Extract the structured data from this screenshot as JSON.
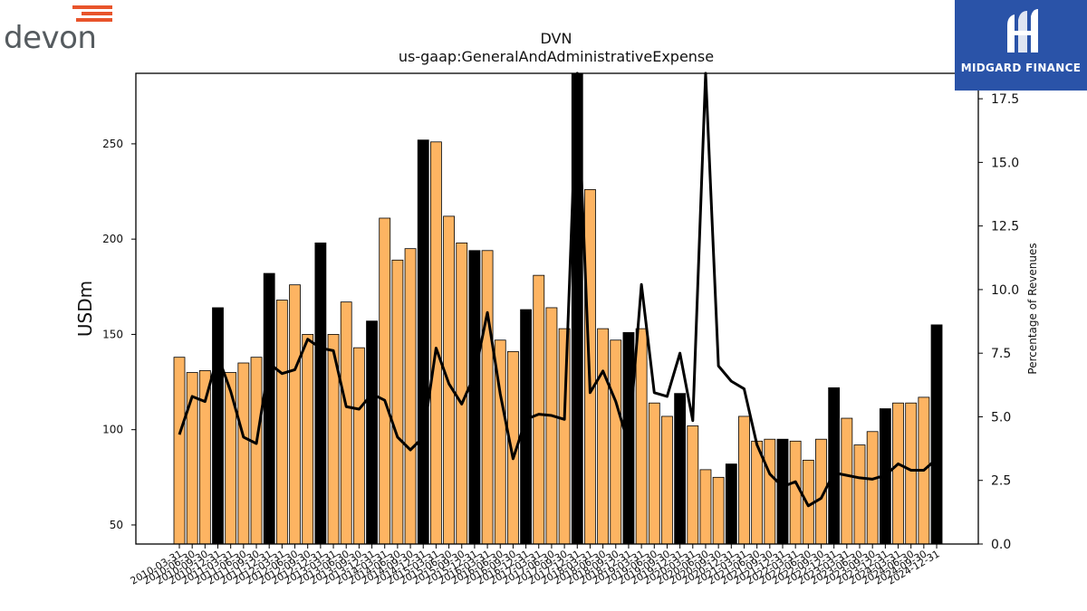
{
  "header": {
    "ticker": "DVN",
    "concept": "us-gaap:GeneralAndAdministrativeExpense"
  },
  "logos": {
    "company": "devon",
    "sponsor": "MIDGARD FINANCE"
  },
  "colors": {
    "bar_default": "#fdb462",
    "bar_highlight": "#000000",
    "line": "#000000",
    "brand_orange": "#e8542b",
    "brand_blue": "#2a53a8"
  },
  "chart_data": {
    "type": "bar",
    "ylabel": "USDm",
    "y2label": "Percentage of Revenues",
    "ylim": [
      40,
      287
    ],
    "y2lim": [
      0,
      18.5
    ],
    "yticks": [
      50,
      100,
      150,
      200,
      250
    ],
    "y2ticks": [
      "0.0",
      "2.5",
      "5.0",
      "7.5",
      "10.0",
      "12.5",
      "15.0",
      "17.5"
    ],
    "categories": [
      "2010-03-31",
      "2010-06-30",
      "2010-09-30",
      "2010-12-31",
      "2011-03-31",
      "2011-06-30",
      "2011-09-30",
      "2011-12-31",
      "2012-03-31",
      "2012-06-30",
      "2012-09-30",
      "2012-12-31",
      "2013-03-31",
      "2013-06-30",
      "2013-09-30",
      "2013-12-31",
      "2014-03-31",
      "2014-06-30",
      "2014-09-30",
      "2014-12-31",
      "2015-03-31",
      "2015-06-30",
      "2015-09-30",
      "2015-12-31",
      "2016-03-31",
      "2016-06-30",
      "2016-09-30",
      "2016-12-31",
      "2017-03-31",
      "2017-06-30",
      "2017-09-30",
      "2017-12-31",
      "2018-03-31",
      "2018-06-30",
      "2018-09-30",
      "2018-12-31",
      "2019-03-31",
      "2019-06-30",
      "2019-09-30",
      "2019-12-31",
      "2020-03-31",
      "2020-06-30",
      "2020-09-30",
      "2020-12-31",
      "2021-03-31",
      "2021-06-30",
      "2021-09-30",
      "2021-12-31",
      "2022-03-31",
      "2022-06-30",
      "2022-09-30",
      "2022-12-31",
      "2023-03-31",
      "2023-06-30",
      "2023-09-30",
      "2023-12-31",
      "2024-03-31",
      "2024-06-30",
      "2024-09-30",
      "2024-12-31"
    ],
    "series": [
      {
        "kind": "bar",
        "axis": "left",
        "values": [
          138,
          130,
          131,
          164,
          130,
          135,
          138,
          182,
          168,
          176,
          150,
          198,
          150,
          167,
          143,
          157,
          211,
          189,
          195,
          252,
          251,
          212,
          198,
          194,
          194,
          147,
          141,
          163,
          181,
          164,
          153,
          290,
          226,
          153,
          147,
          151,
          153,
          114,
          107,
          119,
          102,
          79,
          75,
          82,
          107,
          94,
          95,
          95,
          94,
          84,
          95,
          122,
          106,
          92,
          99,
          111,
          114,
          114,
          117,
          155
        ],
        "highlight": [
          false,
          false,
          false,
          true,
          false,
          false,
          false,
          true,
          false,
          false,
          false,
          true,
          false,
          false,
          false,
          true,
          false,
          false,
          false,
          true,
          false,
          false,
          false,
          true,
          false,
          false,
          false,
          true,
          false,
          false,
          false,
          true,
          false,
          false,
          false,
          true,
          false,
          false,
          false,
          true,
          false,
          false,
          false,
          true,
          false,
          false,
          false,
          true,
          false,
          false,
          false,
          true,
          false,
          false,
          false,
          true,
          false,
          false,
          false,
          true
        ]
      },
      {
        "kind": "line",
        "axis": "right",
        "values": [
          4.3,
          5.8,
          5.6,
          7.4,
          6.0,
          4.2,
          3.95,
          7.1,
          6.7,
          6.85,
          8.05,
          7.7,
          7.6,
          5.4,
          5.3,
          5.9,
          5.65,
          4.2,
          3.7,
          4.2,
          7.7,
          6.3,
          5.5,
          6.65,
          9.1,
          5.9,
          3.35,
          4.9,
          5.1,
          5.05,
          4.9,
          18.5,
          5.95,
          6.8,
          5.6,
          3.9,
          10.2,
          5.95,
          5.8,
          7.5,
          4.85,
          18.8,
          7.0,
          6.4,
          6.1,
          3.9,
          2.75,
          2.25,
          2.45,
          1.5,
          1.8,
          2.8,
          2.7,
          2.6,
          2.55,
          2.7,
          3.15,
          2.9,
          2.9,
          3.35
        ]
      }
    ]
  }
}
